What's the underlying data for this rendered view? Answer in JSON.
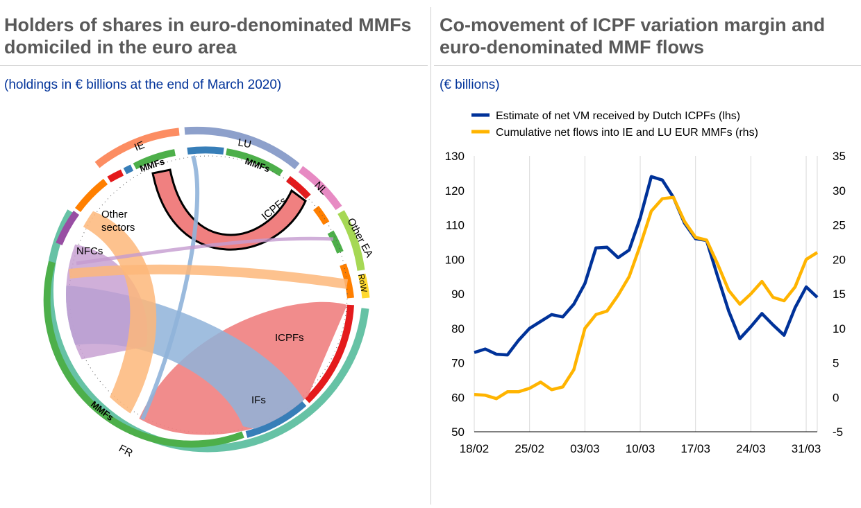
{
  "left": {
    "title_line1": "Holders of shares in euro-denominated MMFs",
    "title_line2": "domiciled in the euro area",
    "subtitle": "(holdings in € billions at the end of March 2020)",
    "chord_labels": {
      "ie": "IE",
      "lu": "LU",
      "nl": "NL",
      "other_ea": "Other EA",
      "row": "RoW",
      "fr": "FR",
      "mmfs_ie": "MMFs",
      "mmfs_lu": "MMFs",
      "mmfs_fr": "MMFs",
      "icpfs_top": "ICPFs",
      "other_sectors_1": "Other",
      "other_sectors_2": "sectors",
      "nfcs": "NFCs",
      "icpfs_right": "ICPFs",
      "ifs": "IFs"
    }
  },
  "right": {
    "title_line1": "Co-movement of ICPF variation margin and",
    "title_line2": "euro-denominated MMF flows",
    "subtitle": "(€ billions)"
  },
  "chart_data": {
    "type": "line",
    "title": "Co-movement of ICPF variation margin and euro-denominated MMF flows",
    "ylabel": "€ billions",
    "x_tick_labels": [
      "18/02",
      "25/02",
      "03/03",
      "10/03",
      "17/03",
      "24/03",
      "31/03"
    ],
    "ylim_left": [
      50,
      130
    ],
    "yticks_left": [
      50,
      60,
      70,
      80,
      90,
      100,
      110,
      120,
      130
    ],
    "ylim_right": [
      -5,
      35
    ],
    "yticks_right": [
      -5,
      0,
      5,
      10,
      15,
      20,
      25,
      30,
      35
    ],
    "grid": "vertical",
    "legend_position": "top",
    "series": [
      {
        "name": "Estimate of net VM received by Dutch ICPFs (lhs)",
        "axis": "left",
        "color": "#003299",
        "x": [
          "18/02",
          "19/02",
          "20/02",
          "21/02",
          "24/02",
          "25/02",
          "26/02",
          "27/02",
          "28/02",
          "02/03",
          "03/03",
          "04/03",
          "05/03",
          "06/03",
          "09/03",
          "10/03",
          "11/03",
          "12/03",
          "13/03",
          "16/03",
          "17/03",
          "18/03",
          "19/03",
          "20/03",
          "23/03",
          "24/03",
          "25/03",
          "26/03",
          "27/03",
          "30/03",
          "31/03",
          "01/04"
        ],
        "values": [
          73,
          74,
          72.5,
          72.3,
          76.5,
          80,
          82,
          84,
          83.3,
          87,
          93,
          103.3,
          103.5,
          100.5,
          102.7,
          112,
          124,
          123,
          118,
          110.5,
          106,
          105.5,
          95,
          85,
          77,
          80.5,
          84.3,
          81,
          78,
          86,
          92,
          89
        ]
      },
      {
        "name": "Cumulative net flows into IE and LU EUR MMFs (rhs)",
        "axis": "right",
        "color": "#ffb400",
        "x": [
          "18/02",
          "19/02",
          "20/02",
          "21/02",
          "24/02",
          "25/02",
          "26/02",
          "27/02",
          "28/02",
          "02/03",
          "03/03",
          "04/03",
          "05/03",
          "06/03",
          "09/03",
          "10/03",
          "11/03",
          "12/03",
          "13/03",
          "16/03",
          "17/03",
          "18/03",
          "19/03",
          "20/03",
          "23/03",
          "24/03",
          "25/03",
          "26/03",
          "27/03",
          "30/03",
          "31/03",
          "01/04"
        ],
        "values": [
          0.4,
          0.3,
          -0.2,
          0.8,
          0.8,
          1.3,
          2.2,
          1.1,
          1.5,
          4,
          10,
          12,
          12.5,
          14.8,
          17.5,
          22,
          27,
          28.8,
          29,
          25.5,
          23.2,
          22.8,
          19.3,
          15.5,
          13.5,
          15,
          16.8,
          14.5,
          14,
          16,
          20,
          21
        ]
      }
    ]
  }
}
